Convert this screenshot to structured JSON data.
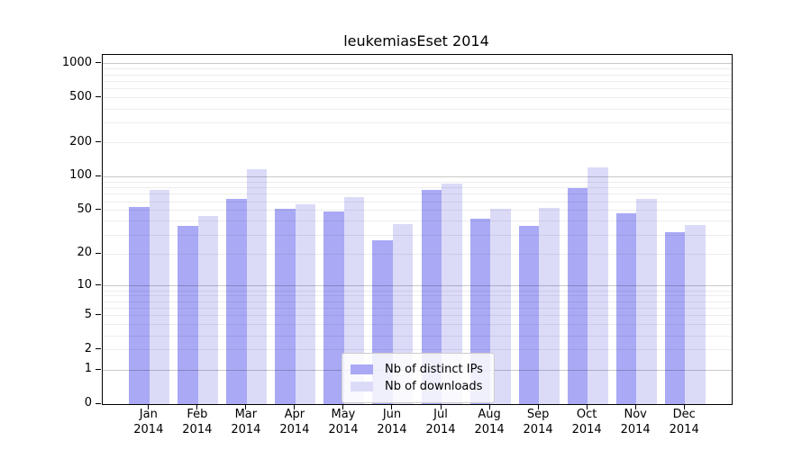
{
  "chart_data": {
    "type": "bar",
    "title": "leukemiasEset 2014",
    "categories": [
      "Jan",
      "Feb",
      "Mar",
      "Apr",
      "May",
      "Jun",
      "Jul",
      "Aug",
      "Sep",
      "Oct",
      "Nov",
      "Dec"
    ],
    "x_sublabel": "2014",
    "series": [
      {
        "name": "Nb of distinct IPs",
        "color": "#a9a9f5",
        "values": [
          54,
          36,
          63,
          52,
          49,
          27,
          77,
          42,
          36,
          79,
          47,
          32
        ]
      },
      {
        "name": "Nb of downloads",
        "color": "#dbdbf8",
        "values": [
          77,
          45,
          117,
          57,
          66,
          38,
          87,
          52,
          53,
          122,
          63,
          37
        ]
      }
    ],
    "yscale": "log1p",
    "ylim": [
      0,
      1200
    ],
    "yticks": [
      0,
      1,
      2,
      5,
      10,
      20,
      50,
      100,
      200,
      500,
      1000
    ],
    "grid_major": [
      1,
      10,
      100,
      1000
    ],
    "grid_minor": [
      2,
      3,
      4,
      5,
      6,
      7,
      8,
      9,
      20,
      30,
      40,
      50,
      60,
      70,
      80,
      90,
      200,
      300,
      400,
      500,
      600,
      700,
      800,
      900
    ],
    "legend": {
      "position": "bottom-center-inside"
    },
    "colors": {
      "axis": "#000000",
      "grid_major": "#c9c9c9",
      "grid_minor": "#ededed",
      "background": "#ffffff"
    }
  }
}
